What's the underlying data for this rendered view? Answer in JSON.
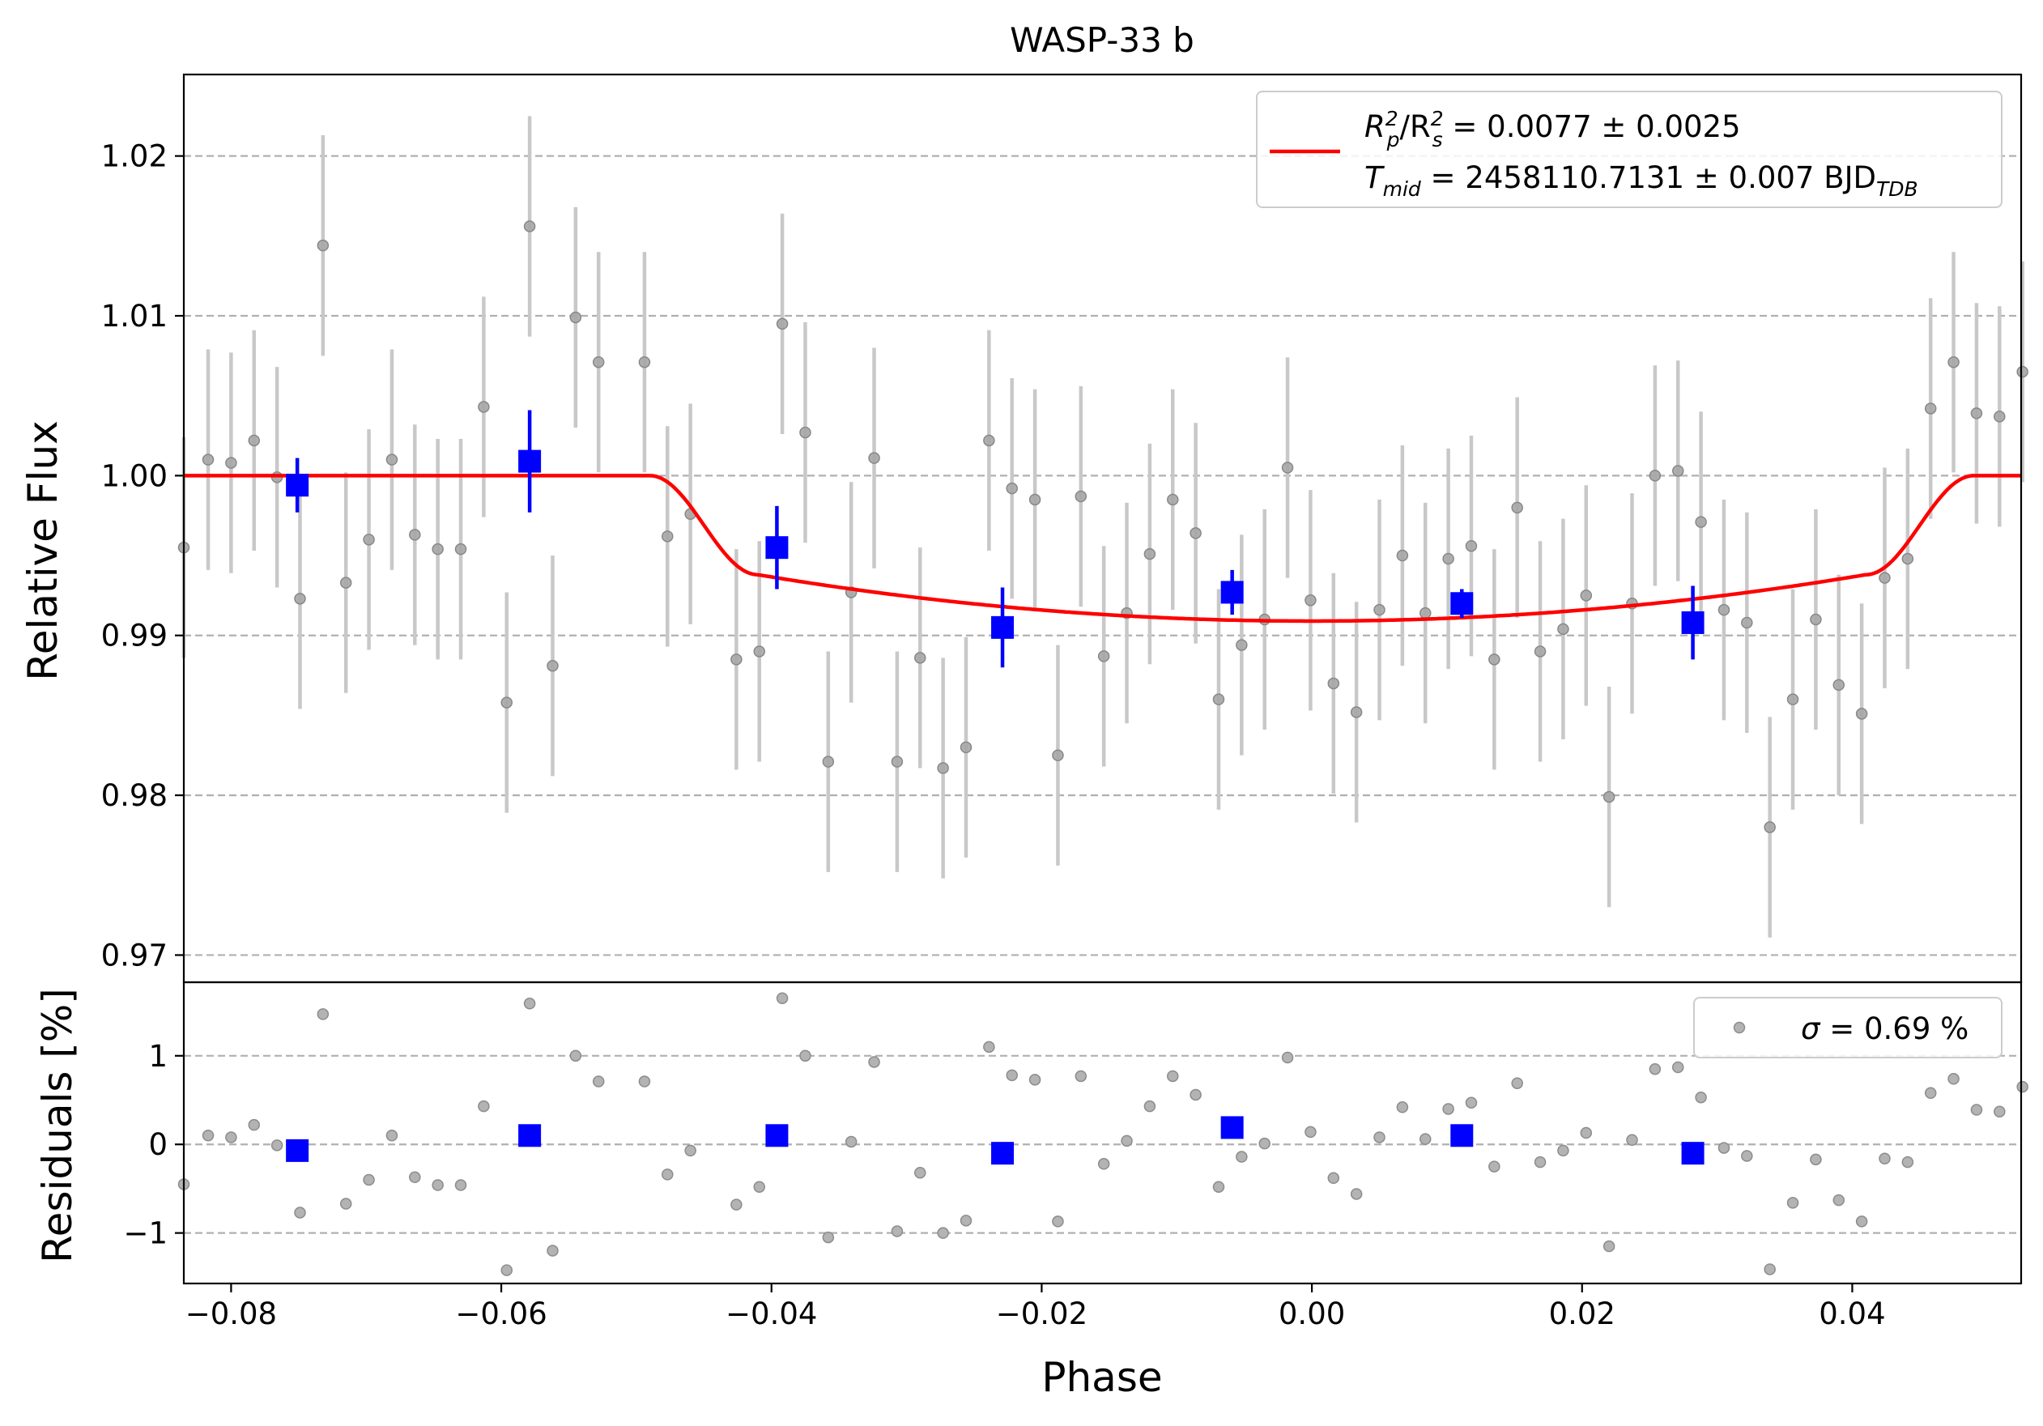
{
  "chart_data": [
    {
      "type": "scatter",
      "panel": "light-curve",
      "title": "WASP-33 b",
      "xlabel": "",
      "ylabel": "Relative Flux",
      "xlim": [
        -0.0835,
        0.0525
      ],
      "ylim": [
        0.9683,
        1.0251
      ],
      "yticks": [
        0.97,
        0.98,
        0.99,
        1.0,
        1.01,
        1.02
      ],
      "ytick_labels": [
        "0.97",
        "0.98",
        "0.99",
        "1.00",
        "1.01",
        "1.02"
      ],
      "grid": "y-dashed",
      "legend": {
        "placement": "top-right",
        "line1": {
          "main": "R",
          "sub1": "p",
          "sup1": "2",
          "sep": "/R",
          "sub2": "s",
          "sup2": "2",
          "tail": " = 0.0077 ± 0.0025"
        },
        "line2": {
          "main": "T",
          "sub1": "mid",
          "tail": " = 2458110.7131 ± 0.007 BJD",
          "sub2": "TDB"
        },
        "color": "#ff0000"
      },
      "series": [
        {
          "name": "",
          "color": "#808080",
          "x": [
            -0.0835,
            -0.0817,
            -0.08,
            -0.0783,
            -0.0766,
            -0.0749,
            -0.0732,
            -0.0715,
            -0.0698,
            -0.0681,
            -0.0664,
            -0.0647,
            -0.063,
            -0.0613,
            -0.0596,
            -0.0579,
            -0.0562,
            -0.0545,
            -0.0528,
            -0.0494,
            -0.0477,
            -0.046,
            -0.0426,
            -0.0409,
            -0.0392,
            -0.0375,
            -0.0358,
            -0.0341,
            -0.0324,
            -0.0307,
            -0.029,
            -0.0273,
            -0.0256,
            -0.0239,
            -0.0222,
            -0.0205,
            -0.0188,
            -0.0171,
            -0.0154,
            -0.0137,
            -0.012,
            -0.0103,
            -0.0086,
            -0.0069,
            -0.0052,
            -0.0035,
            -0.0018,
            -0.0001,
            0.0016,
            0.0033,
            0.005,
            0.0067,
            0.0084,
            0.0101,
            0.0118,
            0.0135,
            0.0152,
            0.0169,
            0.0186,
            0.0203,
            0.022,
            0.0237,
            0.0254,
            0.0271,
            0.0288,
            0.0305,
            0.0322,
            0.0339,
            0.0356,
            0.0373,
            0.039,
            0.0407,
            0.0424,
            0.0441,
            0.0458,
            0.0475,
            0.0492,
            0.0509,
            0.0526
          ],
          "y": [
            0.9955,
            1.001,
            1.0008,
            1.0022,
            0.9999,
            0.9923,
            1.0144,
            0.9933,
            0.996,
            1.001,
            0.9963,
            0.9954,
            0.9954,
            1.0043,
            0.9858,
            1.0156,
            0.9881,
            1.0099,
            1.0071,
            1.0071,
            0.9962,
            0.9976,
            0.9885,
            0.989,
            1.0095,
            1.0027,
            0.9821,
            0.9927,
            1.0011,
            0.9821,
            0.9886,
            0.9817,
            0.983,
            1.0022,
            0.9992,
            0.9985,
            0.9825,
            0.9987,
            0.9887,
            0.9914,
            0.9951,
            0.9985,
            0.9964,
            0.986,
            0.9894,
            0.991,
            1.0005,
            0.9922,
            0.987,
            0.9852,
            0.9916,
            0.995,
            0.9914,
            0.9948,
            0.9956,
            0.9885,
            0.998,
            0.989,
            0.9904,
            0.9925,
            0.9799,
            0.992,
            1.0,
            1.0003,
            0.9971,
            0.9916,
            0.9908,
            0.978,
            0.986,
            0.991,
            0.9869,
            0.9851,
            0.9936,
            0.9948,
            1.0042,
            1.0071,
            1.0039,
            1.0037,
            1.0065
          ],
          "yerr": 0.0069
        },
        {
          "name": "",
          "color": "#0000ff",
          "x": [
            -0.0751,
            -0.0579,
            -0.0396,
            -0.0229,
            -0.0059,
            0.0111,
            0.0282
          ],
          "y": [
            0.9994,
            1.0009,
            0.9955,
            0.9905,
            0.9927,
            0.992,
            0.9908
          ],
          "yerr": [
            0.0017,
            0.0032,
            0.0026,
            0.0025,
            0.0014,
            0.0009,
            0.0023
          ]
        },
        {
          "name": "transit model",
          "color": "#ff0000",
          "kind": "model-line",
          "depth": 0.0077,
          "limb_depth": 0.0016,
          "t1": 0.049,
          "t2": 0.041
        }
      ]
    },
    {
      "type": "scatter",
      "panel": "residuals",
      "xlabel": "Phase",
      "ylabel": "Residuals [%]",
      "xlim": [
        -0.0835,
        0.0525
      ],
      "ylim": [
        -1.57,
        1.83
      ],
      "yticks": [
        -1,
        0,
        1
      ],
      "ytick_labels": [
        "−1",
        "0",
        "1"
      ],
      "xticks": [
        -0.08,
        -0.06,
        -0.04,
        -0.02,
        0.0,
        0.02,
        0.04
      ],
      "xtick_labels": [
        "−0.08",
        "−0.06",
        "−0.04",
        "−0.02",
        "0.00",
        "0.02",
        "0.04"
      ],
      "grid": "y-dashed",
      "legend": {
        "placement": "top-right",
        "symbol": "σ",
        "text": " = 0.69 %"
      },
      "series": [
        {
          "name": "σ = 0.69 %",
          "color": "#808080",
          "x": [
            -0.0835,
            -0.0817,
            -0.08,
            -0.0783,
            -0.0766,
            -0.0749,
            -0.0732,
            -0.0715,
            -0.0698,
            -0.0681,
            -0.0664,
            -0.0647,
            -0.063,
            -0.0613,
            -0.0596,
            -0.0579,
            -0.0562,
            -0.0545,
            -0.0528,
            -0.0494,
            -0.0477,
            -0.046,
            -0.0426,
            -0.0409,
            -0.0392,
            -0.0375,
            -0.0358,
            -0.0341,
            -0.0324,
            -0.0307,
            -0.029,
            -0.0273,
            -0.0256,
            -0.0239,
            -0.0222,
            -0.0205,
            -0.0188,
            -0.0171,
            -0.0154,
            -0.0137,
            -0.012,
            -0.0103,
            -0.0086,
            -0.0069,
            -0.0052,
            -0.0035,
            -0.0018,
            -0.0001,
            0.0016,
            0.0033,
            0.005,
            0.0067,
            0.0084,
            0.0101,
            0.0118,
            0.0135,
            0.0152,
            0.0169,
            0.0186,
            0.0203,
            0.022,
            0.0237,
            0.0254,
            0.0271,
            0.0288,
            0.0305,
            0.0322,
            0.0339,
            0.0356,
            0.0373,
            0.039,
            0.0407,
            0.0424,
            0.0441,
            0.0458,
            0.0475,
            0.0492,
            0.0509,
            0.0526
          ],
          "y": [
            -0.45,
            0.1,
            0.08,
            0.22,
            -0.01,
            -0.77,
            1.47,
            -0.67,
            -0.4,
            0.1,
            -0.37,
            -0.46,
            -0.46,
            0.43,
            -1.42,
            1.59,
            -1.2,
            1.0,
            0.71,
            0.71,
            -0.34,
            -0.07,
            -0.68,
            -0.48,
            1.65,
            1.0,
            -1.05,
            0.03,
            0.93,
            -0.98,
            -0.32,
            -1.0,
            -0.86,
            1.1,
            0.78,
            0.73,
            -0.87,
            0.77,
            -0.22,
            0.04,
            0.43,
            0.77,
            0.56,
            -0.48,
            -0.14,
            0.01,
            0.98,
            0.14,
            -0.38,
            -0.56,
            0.08,
            0.42,
            0.06,
            0.4,
            0.47,
            -0.25,
            0.69,
            -0.2,
            -0.07,
            0.13,
            -1.15,
            0.05,
            0.85,
            0.87,
            0.53,
            -0.04,
            -0.13,
            -1.41,
            -0.66,
            -0.17,
            -0.63,
            -0.87,
            -0.16,
            -0.2,
            0.58,
            0.74,
            0.39,
            0.37,
            0.65
          ]
        },
        {
          "name": "",
          "color": "#0000ff",
          "x": [
            -0.0751,
            -0.0579,
            -0.0396,
            -0.0229,
            -0.0059,
            0.0111,
            0.0282
          ],
          "y": [
            -0.07,
            0.1,
            0.1,
            -0.1,
            0.19,
            0.1,
            -0.1
          ]
        }
      ]
    }
  ]
}
